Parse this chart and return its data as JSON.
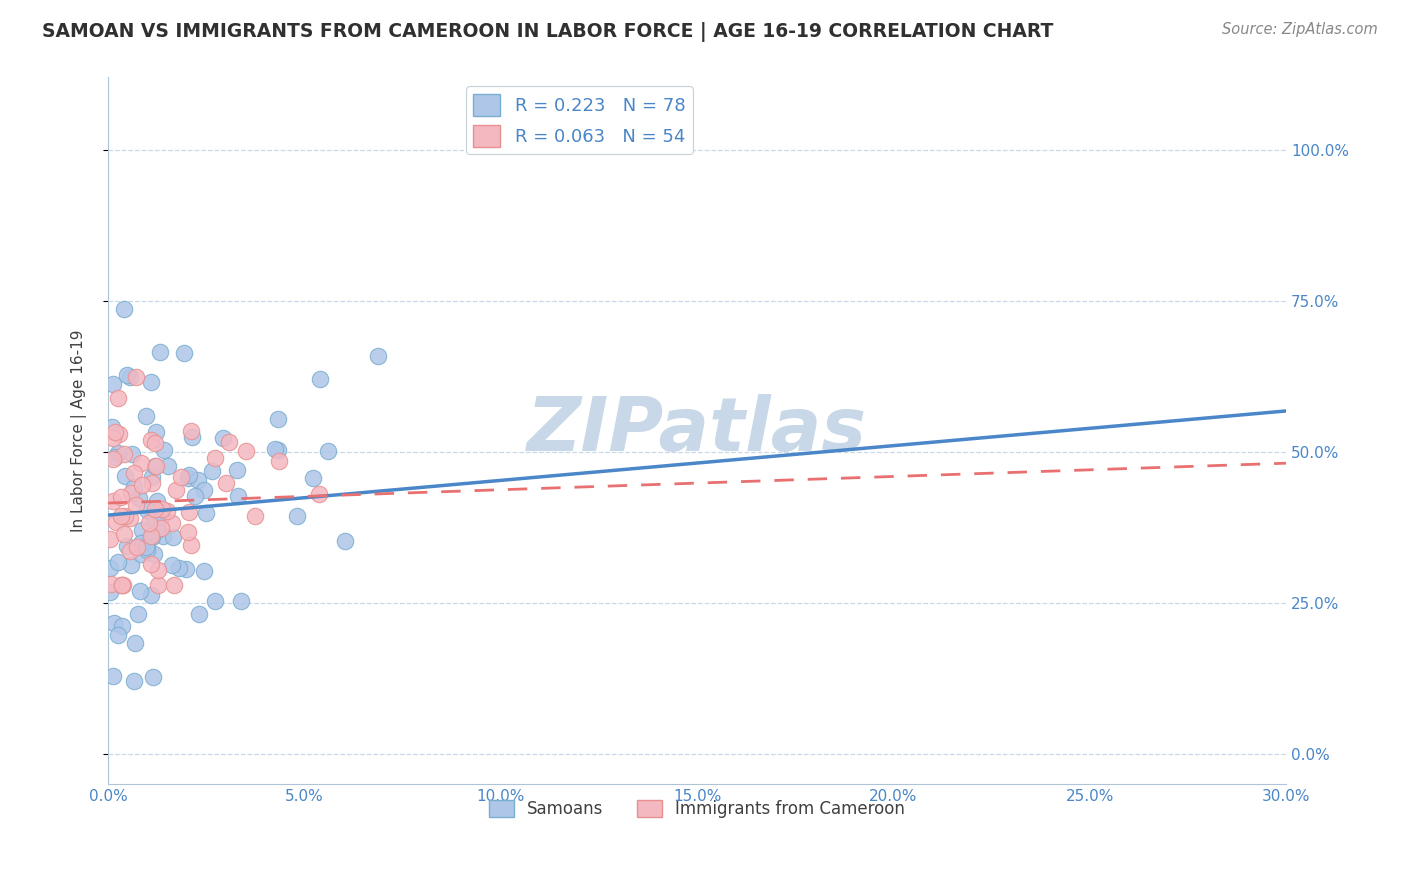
{
  "title": "SAMOAN VS IMMIGRANTS FROM CAMEROON IN LABOR FORCE | AGE 16-19 CORRELATION CHART",
  "source": "Source: ZipAtlas.com",
  "ylabel": "In Labor Force | Age 16-19",
  "xlim": [
    0.0,
    0.3
  ],
  "ylim": [
    -0.05,
    1.12
  ],
  "xticks": [
    0.0,
    0.05,
    0.1,
    0.15,
    0.2,
    0.25,
    0.3
  ],
  "xtick_labels": [
    "0.0%",
    "5.0%",
    "10.0%",
    "15.0%",
    "20.0%",
    "25.0%",
    "30.0%"
  ],
  "yticks": [
    0.0,
    0.25,
    0.5,
    0.75,
    1.0
  ],
  "ytick_labels": [
    "0.0%",
    "25.0%",
    "50.0%",
    "75.0%",
    "100.0%"
  ],
  "legend1_color": "#aec6e8",
  "legend2_color": "#f4b8c1",
  "trendline1_color": "#4a86c8",
  "trendline2_color": "#e87070",
  "watermark": "ZIPatlas",
  "watermark_color": "#c8d8e8",
  "blue_dot_color": "#aec6e8",
  "pink_dot_color": "#f4b8c1",
  "blue_dot_edge": "#7aaed0",
  "pink_dot_edge": "#e89090",
  "R1": 0.223,
  "N1": 78,
  "R2": 0.063,
  "N2": 54,
  "background_color": "#ffffff",
  "grid_color": "#c8d8e8",
  "title_color": "#303030",
  "axis_label_color": "#404040",
  "tick_color": "#4a86c8",
  "legend_text_color": "#4a86c8",
  "trendline1_intercept": 0.395,
  "trendline1_slope": 0.575,
  "trendline2_intercept": 0.415,
  "trendline2_slope": 0.22
}
